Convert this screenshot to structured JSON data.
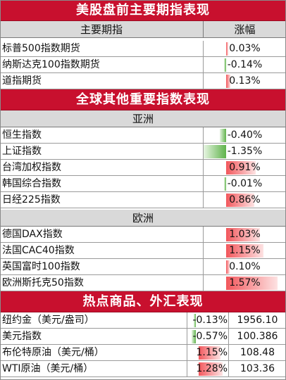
{
  "sections": {
    "us_futures": {
      "title": "美股盘前主要期指表现",
      "col_name": "主要期指",
      "col_change": "涨幅",
      "rows": [
        {
          "name": "标普500指数期货",
          "change": "0.03%",
          "pct": 0.03
        },
        {
          "name": "纳斯达克100指数期货",
          "change": "-0.14%",
          "pct": -0.14
        },
        {
          "name": "道指期货",
          "change": "0.13%",
          "pct": 0.13
        }
      ]
    },
    "global": {
      "title": "全球其他重要指数表现",
      "asia_label": "亚洲",
      "asia_rows": [
        {
          "name": "恒生指数",
          "change": "-0.40%",
          "pct": -0.4
        },
        {
          "name": "上证指数",
          "change": "-1.35%",
          "pct": -1.35
        },
        {
          "name": "台湾加权指数",
          "change": "0.91%",
          "pct": 0.91
        },
        {
          "name": "韩国综合指数",
          "change": "-0.01%",
          "pct": -0.01
        },
        {
          "name": "日经225指数",
          "change": "0.86%",
          "pct": 0.86
        }
      ],
      "europe_label": "欧洲",
      "europe_rows": [
        {
          "name": "德国DAX指数",
          "change": "1.03%",
          "pct": 1.03
        },
        {
          "name": "法国CAC40指数",
          "change": "1.15%",
          "pct": 1.15
        },
        {
          "name": "英国富时100指数",
          "change": "0.10%",
          "pct": 0.1
        },
        {
          "name": "欧洲斯托克50指数",
          "change": "1.57%",
          "pct": 1.57
        }
      ]
    },
    "commodities": {
      "title": "热点商品、外汇表现",
      "rows": [
        {
          "name": "纽约金（美元/盎司）",
          "change": "-0.13%",
          "pct": -0.13,
          "price": "1956.10"
        },
        {
          "name": "美元指数",
          "change": "-0.57%",
          "pct": -0.57,
          "price": "100.386"
        },
        {
          "name": "布伦特原油（美元/桶）",
          "change": "1.15%",
          "pct": 1.15,
          "price": "108.48"
        },
        {
          "name": "WTI原油（美元/桶）",
          "change": "1.28%",
          "pct": 1.28,
          "price": "103.36"
        }
      ]
    }
  },
  "colors": {
    "header_bg": "#c8102e",
    "positive_bar": "#f2575c",
    "negative_bar": "#5fb34b"
  }
}
